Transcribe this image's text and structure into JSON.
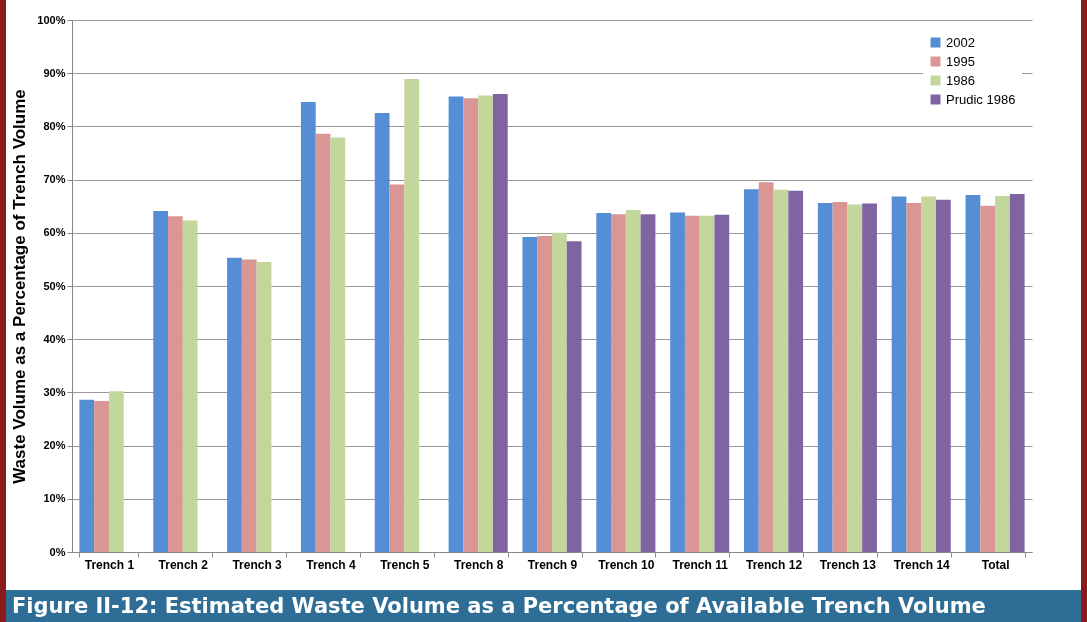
{
  "chart_data": {
    "type": "bar",
    "title": "Figure II-12: Estimated Waste Volume as a Percentage of Available Trench Volume",
    "ylabel": "Waste Volume as a Percentage of Trench Volume",
    "categories": [
      "Trench 1",
      "Trench 2",
      "Trench 3",
      "Trench 4",
      "Trench 5",
      "Trench 8",
      "Trench 9",
      "Trench 10",
      "Trench 11",
      "Trench 12",
      "Trench 13",
      "Trench 14",
      "Total"
    ],
    "series": [
      {
        "name": "2002",
        "color": "#558ed5",
        "values": [
          28.6,
          64.1,
          55.3,
          84.6,
          82.5,
          85.6,
          59.2,
          63.7,
          63.8,
          68.2,
          65.6,
          66.8,
          67.1
        ]
      },
      {
        "name": "1995",
        "color": "#d99694",
        "values": [
          28.4,
          63.1,
          55.0,
          78.6,
          69.1,
          85.3,
          59.4,
          63.5,
          63.2,
          69.5,
          65.8,
          65.6,
          65.1
        ]
      },
      {
        "name": "1986",
        "color": "#c3d69b",
        "values": [
          30.2,
          62.3,
          54.5,
          77.9,
          88.9,
          85.8,
          60.0,
          64.3,
          63.2,
          68.1,
          65.3,
          66.8,
          66.9
        ]
      },
      {
        "name": "Prudic 1986",
        "color": "#8064a2",
        "values": [
          null,
          null,
          null,
          null,
          null,
          86.1,
          58.4,
          63.5,
          63.4,
          67.9,
          65.5,
          66.2,
          67.3
        ]
      }
    ],
    "ylim": [
      0,
      100
    ],
    "yticks": [
      {
        "value": 0,
        "label": "0%"
      },
      {
        "value": 10,
        "label": "10%"
      },
      {
        "value": 20,
        "label": "20%"
      },
      {
        "value": 30,
        "label": "30%"
      },
      {
        "value": 40,
        "label": "40%"
      },
      {
        "value": 50,
        "label": "50%"
      },
      {
        "value": 60,
        "label": "60%"
      },
      {
        "value": 70,
        "label": "70%"
      },
      {
        "value": 80,
        "label": "80%"
      },
      {
        "value": 90,
        "label": "90%"
      },
      {
        "value": 100,
        "label": "100%"
      }
    ],
    "grid": "y",
    "legend": "top right"
  }
}
